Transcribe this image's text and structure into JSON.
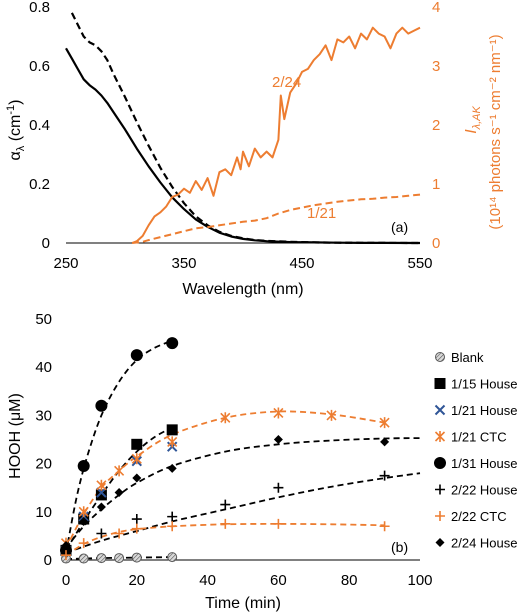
{
  "chart_data": [
    {
      "type": "line",
      "panel_label": "(a)",
      "xlabel": "Wavelength (nm)",
      "ylabel_left": {
        "main": "α",
        "sub": "λ",
        "rest": " (cm",
        "sup": "-1",
        "end": ")"
      },
      "ylabel_right": {
        "line1_main": "I",
        "line1_sub": "λ,AK",
        "line2": "(10¹⁴ photons s⁻¹ cm⁻² nm⁻¹)"
      },
      "xlim": [
        250,
        550
      ],
      "ylim_left": [
        0,
        0.8
      ],
      "ylim_right": [
        0,
        4
      ],
      "xticks": [
        250,
        350,
        450,
        550
      ],
      "yticks_left": [
        "0",
        "0.2",
        "0.4",
        "0.6",
        "0.8"
      ],
      "yticks_right": [
        "0",
        "1",
        "2",
        "3",
        "4"
      ],
      "grid": false,
      "accent_color": "#ED7D31",
      "series": [
        {
          "style": "solid-black",
          "axis": "left",
          "x": [
            250,
            255,
            260,
            265,
            270,
            275,
            280,
            285,
            290,
            300,
            310,
            320,
            330,
            340,
            350,
            360,
            370,
            380,
            390,
            400,
            410,
            420,
            440,
            460,
            480,
            500,
            520,
            550
          ],
          "y": [
            0.66,
            0.625,
            0.59,
            0.555,
            0.535,
            0.52,
            0.5,
            0.475,
            0.445,
            0.385,
            0.32,
            0.26,
            0.205,
            0.155,
            0.115,
            0.08,
            0.055,
            0.035,
            0.022,
            0.014,
            0.009,
            0.006,
            0.003,
            0.002,
            0.001,
            0.0005,
            0.0003,
            0.0001
          ]
        },
        {
          "style": "dashed-black",
          "axis": "left",
          "x": [
            255,
            260,
            265,
            270,
            275,
            280,
            285,
            290,
            300,
            310,
            320,
            330,
            340,
            350,
            360,
            370,
            380,
            390,
            400,
            410,
            420,
            440,
            460,
            480,
            500,
            520,
            550
          ],
          "y": [
            0.78,
            0.74,
            0.7,
            0.68,
            0.67,
            0.65,
            0.62,
            0.575,
            0.495,
            0.41,
            0.33,
            0.255,
            0.19,
            0.135,
            0.09,
            0.06,
            0.038,
            0.024,
            0.016,
            0.01,
            0.007,
            0.004,
            0.002,
            0.001,
            0.0006,
            0.0003,
            0.0001
          ]
        },
        {
          "name": "2/24",
          "style": "solid-orange",
          "axis": "right",
          "x": [
            306,
            310,
            315,
            320,
            325,
            330,
            335,
            340,
            345,
            350,
            355,
            360,
            365,
            370,
            375,
            380,
            385,
            390,
            395,
            398,
            400,
            405,
            410,
            415,
            420,
            425,
            430,
            432,
            435,
            440,
            445,
            450,
            455,
            460,
            465,
            470,
            475,
            480,
            485,
            490,
            495,
            500,
            505,
            510,
            515,
            520,
            525,
            530,
            535,
            540,
            545,
            550
          ],
          "y": [
            0,
            0.03,
            0.12,
            0.3,
            0.45,
            0.52,
            0.62,
            0.78,
            0.82,
            0.92,
            0.85,
            1.05,
            0.9,
            1.1,
            0.8,
            1.2,
            1.25,
            1.15,
            1.45,
            1.25,
            1.55,
            1.3,
            1.6,
            1.45,
            1.55,
            1.45,
            1.75,
            2.5,
            2.1,
            2.55,
            2.7,
            2.9,
            2.95,
            3.1,
            3.2,
            3.35,
            3.1,
            3.45,
            3.4,
            3.5,
            3.3,
            3.55,
            3.45,
            3.65,
            3.55,
            3.5,
            3.3,
            3.55,
            3.65,
            3.55,
            3.6,
            3.65
          ]
        },
        {
          "name": "1/21",
          "style": "dashed-orange",
          "axis": "right",
          "x": [
            306,
            315,
            320,
            330,
            340,
            350,
            360,
            370,
            380,
            390,
            400,
            410,
            420,
            430,
            440,
            450,
            460,
            470,
            480,
            490,
            500,
            510,
            520,
            530,
            540,
            550
          ],
          "y": [
            0,
            0.02,
            0.05,
            0.1,
            0.15,
            0.2,
            0.25,
            0.27,
            0.3,
            0.33,
            0.36,
            0.38,
            0.42,
            0.5,
            0.56,
            0.6,
            0.64,
            0.67,
            0.7,
            0.72,
            0.74,
            0.75,
            0.77,
            0.78,
            0.8,
            0.82
          ]
        }
      ]
    },
    {
      "type": "scatter",
      "panel_label": "(b)",
      "xlabel": "Time (min)",
      "ylabel": "HOOH (μM)",
      "xlim": [
        0,
        100
      ],
      "ylim": [
        0,
        50
      ],
      "xticks": [
        0,
        20,
        40,
        60,
        80,
        100
      ],
      "yticks": [
        0,
        10,
        20,
        30,
        40,
        50
      ],
      "grid": false,
      "legend_position": "right",
      "series": [
        {
          "name": "Blank",
          "marker": "hatched-circle",
          "color": "#595959",
          "x": [
            0,
            5,
            10,
            15,
            20,
            30
          ],
          "y": [
            0.3,
            0.3,
            0.4,
            0.4,
            0.5,
            0.6
          ],
          "fit": {
            "color": "#000000",
            "x": [
              0,
              10,
              20,
              30
            ],
            "y": [
              0.2,
              0.4,
              0.5,
              0.6
            ]
          }
        },
        {
          "name": "1/15 House",
          "marker": "square",
          "color": "#000000",
          "x": [
            0,
            5,
            10,
            20,
            30
          ],
          "y": [
            2,
            8.5,
            13.5,
            24,
            27
          ],
          "fit": {
            "color": "#000000",
            "x": [
              0,
              5,
              10,
              15,
              20,
              25,
              30
            ],
            "y": [
              2,
              8,
              13.5,
              18.5,
              22.5,
              25.5,
              27.5
            ]
          }
        },
        {
          "name": "1/21 House",
          "marker": "x",
          "color": "#2F5597",
          "x": [
            0,
            5,
            10,
            20,
            30
          ],
          "y": [
            2,
            9,
            14,
            20.5,
            23.5
          ]
        },
        {
          "name": "1/21 CTC",
          "marker": "asterisk",
          "color": "#ED7D31",
          "x": [
            0,
            5,
            10,
            15,
            20,
            30,
            45,
            60,
            75,
            90
          ],
          "y": [
            3.5,
            10,
            15.5,
            18.5,
            21,
            24.5,
            29.5,
            30.5,
            30,
            28.5
          ],
          "fit": {
            "color": "#ED7D31",
            "x": [
              0,
              5,
              10,
              15,
              20,
              30,
              45,
              60,
              75,
              90
            ],
            "y": [
              2.5,
              9.5,
              15,
              18.5,
              21.5,
              26,
              29.5,
              30.8,
              30.2,
              28.5
            ]
          }
        },
        {
          "name": "1/31 House",
          "marker": "circle",
          "color": "#000000",
          "x": [
            0,
            5,
            10,
            20,
            30
          ],
          "y": [
            2,
            19.5,
            32,
            42.5,
            45
          ],
          "fit": {
            "color": "#000000",
            "x": [
              0,
              3,
              6,
              10,
              15,
              20,
              25,
              30
            ],
            "y": [
              1.5,
              13,
              21.5,
              30,
              37,
              41.5,
              44,
              45.5
            ]
          }
        },
        {
          "name": "2/22 House",
          "marker": "plus",
          "color": "#000000",
          "x": [
            0,
            10,
            20,
            30,
            45,
            60,
            90
          ],
          "y": [
            1.5,
            5.5,
            8.5,
            9,
            11.5,
            15,
            17.5
          ],
          "fit": {
            "color": "#000000",
            "x": [
              0,
              10,
              20,
              30,
              45,
              60,
              75,
              90,
              100
            ],
            "y": [
              1.5,
              4,
              6,
              8,
              10.5,
              13,
              15.2,
              17,
              18
            ]
          }
        },
        {
          "name": "2/22 CTC",
          "marker": "plus",
          "color": "#ED7D31",
          "x": [
            0,
            5,
            15,
            20,
            30,
            45,
            60,
            90
          ],
          "y": [
            1,
            3.5,
            5.5,
            6.5,
            7,
            7.5,
            7.5,
            7
          ],
          "fit": {
            "color": "#ED7D31",
            "x": [
              0,
              5,
              10,
              15,
              20,
              30,
              45,
              60,
              75,
              90
            ],
            "y": [
              1,
              3.3,
              4.8,
              5.8,
              6.4,
              7,
              7.4,
              7.5,
              7.4,
              7.2
            ]
          }
        },
        {
          "name": "2/24 House",
          "marker": "diamond",
          "color": "#000000",
          "x": [
            0,
            5,
            10,
            15,
            20,
            30,
            60,
            90
          ],
          "y": [
            3,
            8,
            11,
            14,
            17,
            19,
            25,
            24.5
          ],
          "fit": {
            "color": "#000000",
            "x": [
              0,
              5,
              10,
              15,
              20,
              30,
              45,
              60,
              75,
              90,
              100
            ],
            "y": [
              2.5,
              7,
              10.5,
              13.5,
              16,
              19.5,
              22.5,
              24,
              24.8,
              25.2,
              25.3
            ]
          }
        }
      ]
    }
  ]
}
